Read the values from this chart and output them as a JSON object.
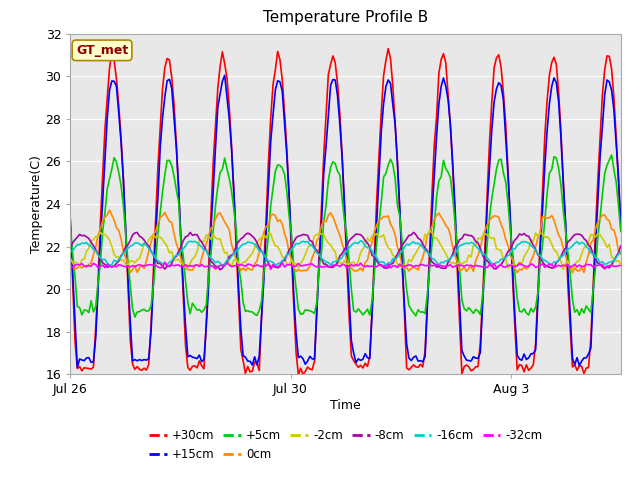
{
  "title": "Temperature Profile B",
  "xlabel": "Time",
  "ylabel": "Temperature(C)",
  "ylim": [
    16,
    32
  ],
  "xlim_days": [
    0,
    10
  ],
  "background_color": "#e8e8e8",
  "fig_background": "#ffffff",
  "legend_label": "GT_met",
  "series": {
    "+30cm": {
      "color": "#ff0000",
      "lw": 1.2
    },
    "+15cm": {
      "color": "#0000ff",
      "lw": 1.2
    },
    "+5cm": {
      "color": "#00cc00",
      "lw": 1.2
    },
    "0cm": {
      "color": "#ff8800",
      "lw": 1.2
    },
    "-2cm": {
      "color": "#cccc00",
      "lw": 1.2
    },
    "-8cm": {
      "color": "#aa00aa",
      "lw": 1.2
    },
    "-16cm": {
      "color": "#00cccc",
      "lw": 1.2
    },
    "-32cm": {
      "color": "#ff00ff",
      "lw": 1.2
    }
  },
  "xtick_labels": [
    "Jul 26",
    "Jul 30",
    "Aug 3"
  ],
  "xtick_positions": [
    0,
    4,
    8
  ],
  "ytick_positions": [
    16,
    18,
    20,
    22,
    24,
    26,
    28,
    30,
    32
  ]
}
